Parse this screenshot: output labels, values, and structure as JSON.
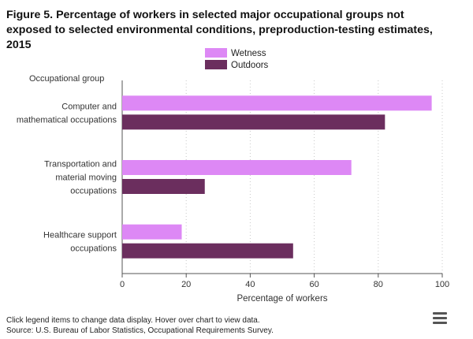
{
  "chart_data": {
    "type": "bar",
    "orientation": "horizontal",
    "title": "Figure 5. Percentage of workers in selected major occupational groups not exposed to selected environmental conditions, preproduction-testing estimates, 2015",
    "ylabel": "Occupational group",
    "xlabel": "Percentage of workers",
    "categories": [
      [
        "Computer and",
        "mathematical occupations"
      ],
      [
        "Transportation and",
        "material moving",
        "occupations"
      ],
      [
        "Healthcare support",
        "occupations"
      ]
    ],
    "series": [
      {
        "name": "Wetness",
        "color": "#dd88f5",
        "values": [
          96.7,
          71.6,
          18.6
        ]
      },
      {
        "name": "Outdoors",
        "color": "#6b2e5e",
        "values": [
          82.1,
          25.8,
          53.4
        ]
      }
    ],
    "xlim": [
      0,
      100
    ],
    "xticks": [
      "0",
      "20",
      "40",
      "60",
      "80",
      "100"
    ],
    "grid": "vertical dotted",
    "legend_position": "top-center"
  },
  "footer": {
    "note": "Click legend items to change data display. Hover over chart to view data.",
    "source": "Source: U.S. Bureau of Labor Statistics, Occupational Requirements Survey."
  },
  "menu_icon": "hamburger-menu-icon"
}
